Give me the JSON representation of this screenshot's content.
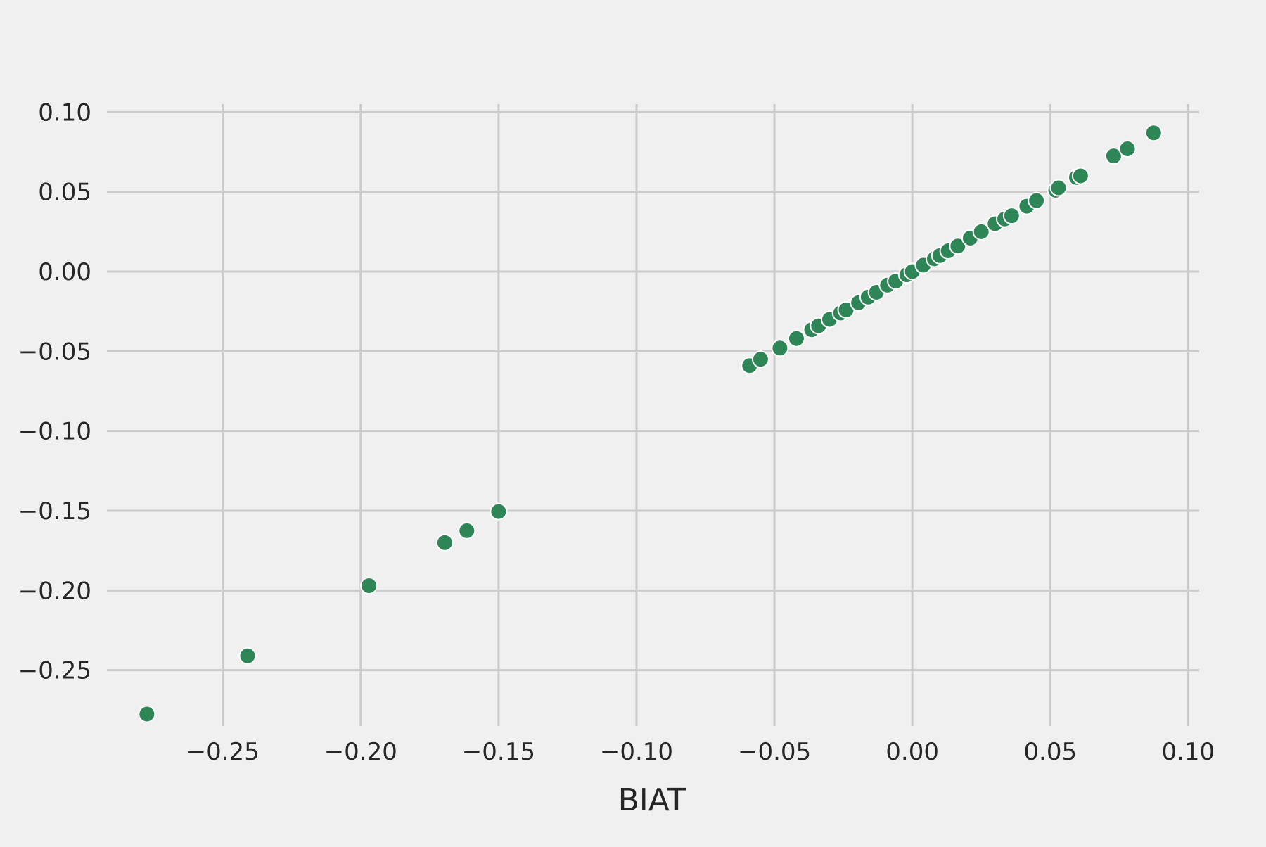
{
  "chart_data": {
    "type": "scatter",
    "title": "",
    "xlabel": "BIAT",
    "ylabel": "",
    "xlim": [
      -0.292,
      0.104
    ],
    "ylim": [
      -0.285,
      0.105
    ],
    "grid": true,
    "legend": "none",
    "point_color": "#2e8555",
    "x_ticks": [
      -0.25,
      -0.2,
      -0.15,
      -0.1,
      -0.05,
      0.0,
      0.05,
      0.1
    ],
    "x_tick_labels": [
      "−0.25",
      "−0.20",
      "−0.15",
      "−0.10",
      "−0.05",
      "0.00",
      "0.05",
      "0.10"
    ],
    "y_ticks": [
      0.1,
      0.05,
      0.0,
      -0.05,
      -0.1,
      -0.15,
      -0.2,
      -0.25
    ],
    "y_tick_labels": [
      "0.10",
      "0.05",
      "0.00",
      "−0.05",
      "−0.10",
      "−0.15",
      "−0.20",
      "−0.25"
    ],
    "points": [
      {
        "x": -0.2775,
        "y": -0.2775
      },
      {
        "x": -0.241,
        "y": -0.241
      },
      {
        "x": -0.197,
        "y": -0.197
      },
      {
        "x": -0.1695,
        "y": -0.17
      },
      {
        "x": -0.1615,
        "y": -0.1625
      },
      {
        "x": -0.15,
        "y": -0.1505
      },
      {
        "x": -0.059,
        "y": -0.059
      },
      {
        "x": -0.055,
        "y": -0.055
      },
      {
        "x": -0.048,
        "y": -0.048
      },
      {
        "x": -0.042,
        "y": -0.042
      },
      {
        "x": -0.0365,
        "y": -0.0365
      },
      {
        "x": -0.034,
        "y": -0.034
      },
      {
        "x": -0.03,
        "y": -0.03
      },
      {
        "x": -0.026,
        "y": -0.026
      },
      {
        "x": -0.024,
        "y": -0.024
      },
      {
        "x": -0.0195,
        "y": -0.0195
      },
      {
        "x": -0.016,
        "y": -0.016
      },
      {
        "x": -0.013,
        "y": -0.013
      },
      {
        "x": -0.009,
        "y": -0.0085
      },
      {
        "x": -0.006,
        "y": -0.006
      },
      {
        "x": -0.002,
        "y": -0.002
      },
      {
        "x": 0.0,
        "y": 0.0
      },
      {
        "x": 0.004,
        "y": 0.004
      },
      {
        "x": 0.008,
        "y": 0.008
      },
      {
        "x": 0.01,
        "y": 0.01
      },
      {
        "x": 0.013,
        "y": 0.013
      },
      {
        "x": 0.0165,
        "y": 0.016
      },
      {
        "x": 0.021,
        "y": 0.021
      },
      {
        "x": 0.025,
        "y": 0.025
      },
      {
        "x": 0.03,
        "y": 0.03
      },
      {
        "x": 0.0335,
        "y": 0.033
      },
      {
        "x": 0.036,
        "y": 0.035
      },
      {
        "x": 0.0415,
        "y": 0.041
      },
      {
        "x": 0.045,
        "y": 0.0445
      },
      {
        "x": 0.052,
        "y": 0.051
      },
      {
        "x": 0.053,
        "y": 0.0525
      },
      {
        "x": 0.0595,
        "y": 0.059
      },
      {
        "x": 0.061,
        "y": 0.06
      },
      {
        "x": 0.073,
        "y": 0.0725
      },
      {
        "x": 0.078,
        "y": 0.077
      },
      {
        "x": 0.0875,
        "y": 0.087
      }
    ]
  }
}
